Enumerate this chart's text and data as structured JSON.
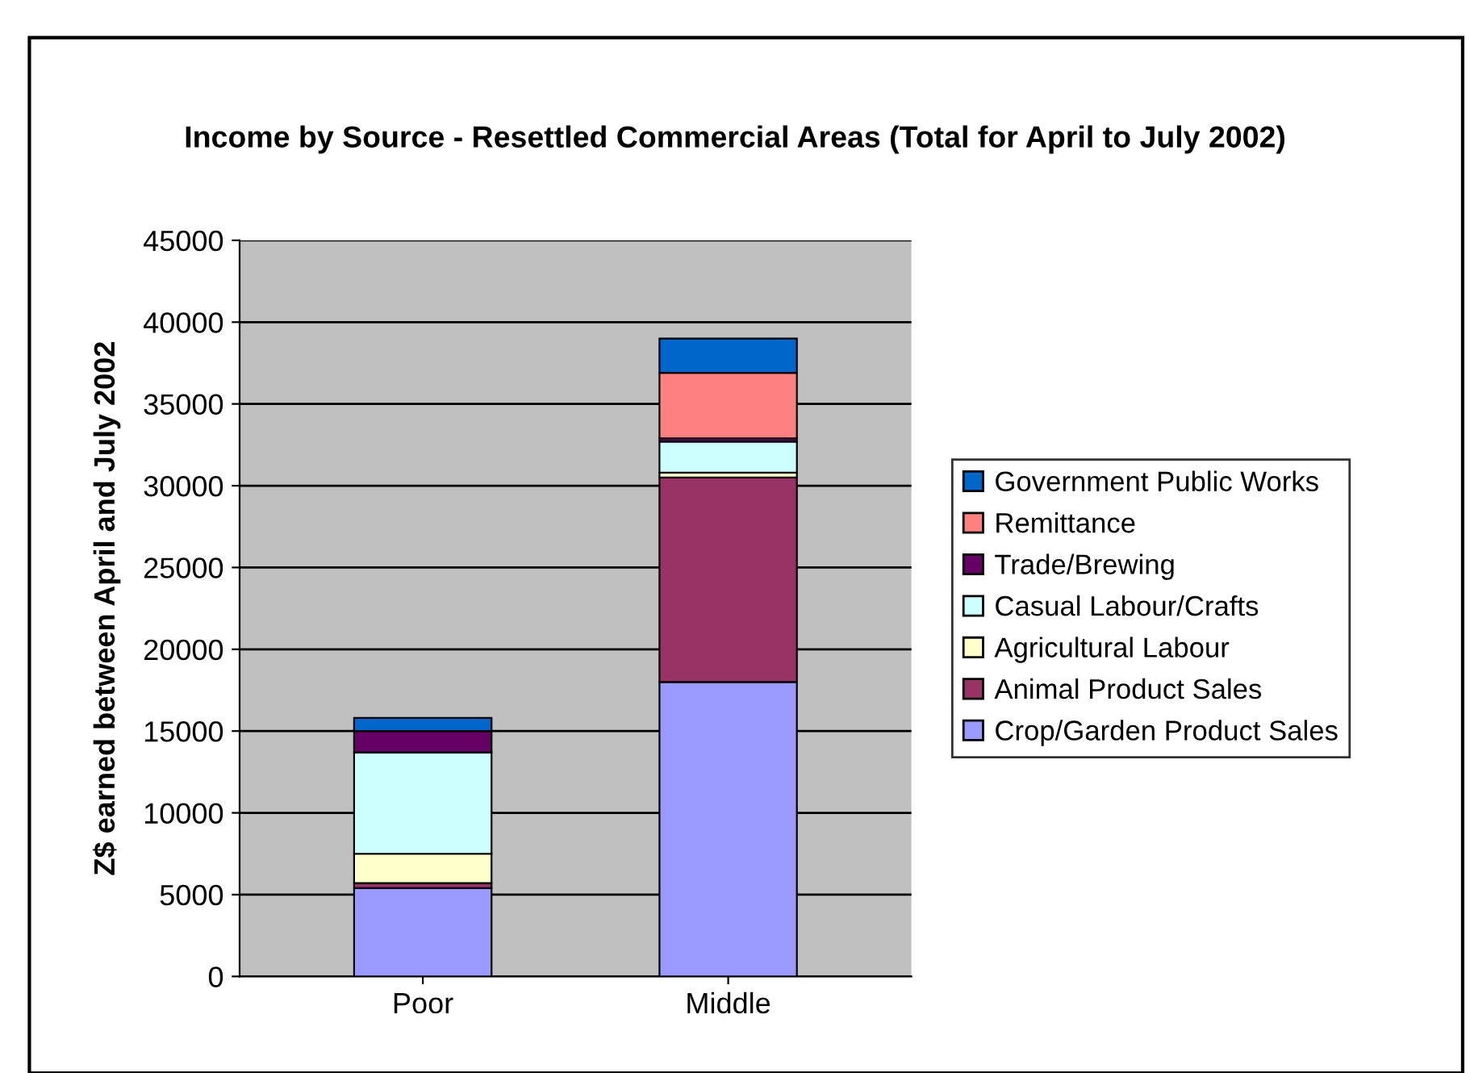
{
  "chart_data": {
    "type": "bar",
    "title": "Income by Source - Resettled Commercial Areas (Total for April to July 2002)",
    "ylabel": "Z$ earned between April and July 2002",
    "categories": [
      "Poor",
      "Middle"
    ],
    "stacked": true,
    "series": [
      {
        "name": "Crop/Garden Product Sales",
        "color": "#9999ff",
        "values": [
          5400,
          18000
        ]
      },
      {
        "name": "Animal Product Sales",
        "color": "#993366",
        "values": [
          300,
          12500
        ]
      },
      {
        "name": "Agricultural Labour",
        "color": "#ffffcc",
        "values": [
          1800,
          300
        ]
      },
      {
        "name": "Casual Labour/Crafts",
        "color": "#ccffff",
        "values": [
          6200,
          1900
        ]
      },
      {
        "name": "Trade/Brewing",
        "color": "#660066",
        "values": [
          1300,
          200
        ]
      },
      {
        "name": "Remittance",
        "color": "#ff8080",
        "values": [
          0,
          4000
        ]
      },
      {
        "name": "Government Public Works",
        "color": "#0066cc",
        "values": [
          800,
          2100
        ]
      }
    ],
    "ylim": [
      0,
      45000
    ],
    "yticks": [
      0,
      5000,
      10000,
      15000,
      20000,
      25000,
      30000,
      35000,
      40000,
      45000
    ],
    "grid": "y",
    "legend": "right"
  }
}
